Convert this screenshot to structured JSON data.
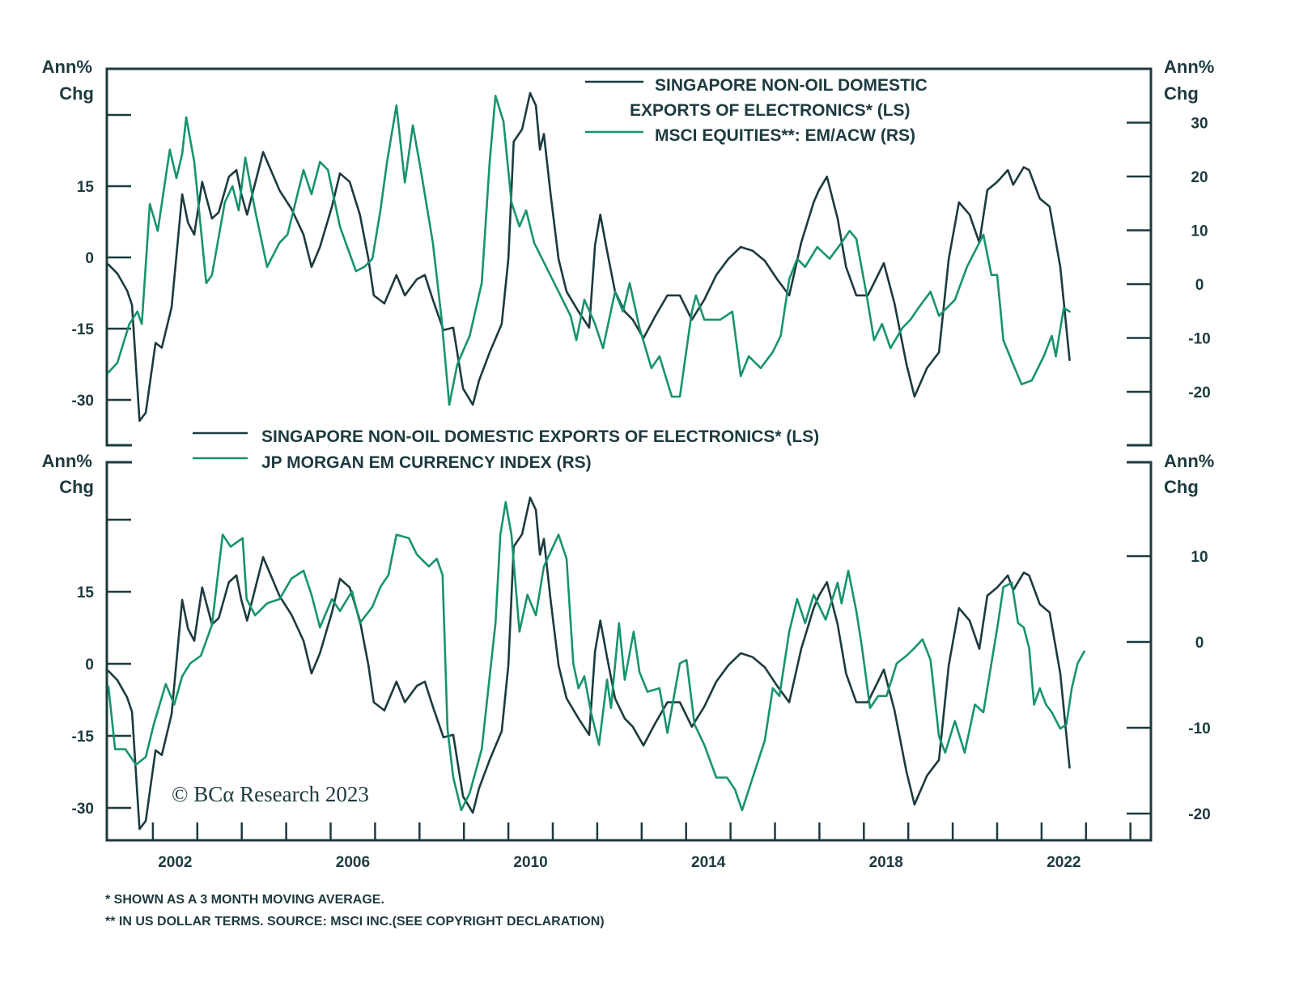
{
  "chart_data": [
    {
      "type": "line",
      "panel": "top",
      "left_axis": {
        "label_line1": "Ann%",
        "label_line2": "Chg",
        "ticks": [
          30,
          15,
          0,
          -15,
          -30
        ],
        "tick_labels": [
          "",
          "15",
          "0",
          "-15",
          "-30"
        ],
        "range": [
          -37,
          40
        ]
      },
      "right_axis": {
        "label_line1": "Ann%",
        "label_line2": "Chg",
        "ticks": [
          30,
          20,
          10,
          0,
          -10,
          -20
        ],
        "tick_labels": [
          "30",
          "20",
          "10",
          "0",
          "-10",
          "-20"
        ],
        "range": [
          -30,
          40
        ]
      },
      "legend": {
        "placement": "top-right",
        "entries": [
          {
            "line1": "SINGAPORE NON-OIL DOMESTIC",
            "line2": "EXPORTS OF ELECTRONICS* (LS)",
            "series": "electronics"
          },
          {
            "line1": "MSCI EQUITIES**: EM/ACW (RS)",
            "series": "msci"
          }
        ]
      },
      "series": [
        {
          "name": "SINGAPORE NON-OIL DOMESTIC EXPORTS OF ELECTRONICS* (LS)",
          "key": "electronics",
          "axis": "left",
          "color": "#1d3a3f",
          "ref": "electronics"
        },
        {
          "name": "MSCI EQUITIES**: EM/ACW (RS)",
          "key": "msci",
          "axis": "right",
          "color": "#17936f",
          "x": [
            2001.0,
            2001.2,
            2001.47,
            2001.65,
            2001.75,
            2001.93,
            2002.11,
            2002.38,
            2002.53,
            2002.66,
            2002.75,
            2002.93,
            2003.2,
            2003.33,
            2003.62,
            2003.79,
            2003.93,
            2004.08,
            2004.3,
            2004.57,
            2004.85,
            2005.03,
            2005.39,
            2005.57,
            2005.76,
            2005.94,
            2006.21,
            2006.57,
            2006.76,
            2006.94,
            2007.12,
            2007.27,
            2007.48,
            2007.67,
            2007.85,
            2008.03,
            2008.3,
            2008.49,
            2008.67,
            2008.85,
            2009.13,
            2009.4,
            2009.58,
            2009.71,
            2009.89,
            2010.07,
            2010.25,
            2010.4,
            2010.58,
            2010.85,
            2011.13,
            2011.4,
            2011.53,
            2011.71,
            2011.95,
            2012.13,
            2012.4,
            2012.58,
            2012.73,
            2012.95,
            2013.22,
            2013.4,
            2013.68,
            2013.86,
            2014.13,
            2014.22,
            2014.41,
            2014.77,
            2015.04,
            2015.23,
            2015.41,
            2015.68,
            2015.95,
            2016.13,
            2016.32,
            2016.5,
            2016.68,
            2016.95,
            2017.23,
            2017.5,
            2017.68,
            2017.83,
            2018.05,
            2018.23,
            2018.41,
            2018.6,
            2018.87,
            2019.05,
            2019.23,
            2019.5,
            2019.69,
            2020.05,
            2020.32,
            2020.6,
            2020.69,
            2020.87,
            2021.0,
            2021.14,
            2021.36,
            2021.55,
            2021.78,
            2022.05,
            2022.23,
            2022.32,
            2022.5,
            2022.63
          ],
          "y": [
            -16.4,
            -14.6,
            -7.4,
            -5.1,
            -7.4,
            14.9,
            9.9,
            25,
            19.7,
            24.2,
            31,
            22.7,
            0.2,
            1.7,
            15.2,
            18.2,
            13.7,
            23.5,
            13.7,
            3.2,
            7.7,
            9.2,
            21.2,
            16.7,
            22.7,
            21.2,
            10.7,
            2.4,
            3.2,
            4.7,
            13.7,
            22.7,
            33.2,
            18.9,
            29.5,
            21.2,
            7.7,
            -5.9,
            -22.4,
            -14.9,
            -9.6,
            0.2,
            22.7,
            35,
            30.2,
            15.2,
            10.7,
            13.7,
            7.7,
            3.2,
            -1.4,
            -5.9,
            -10.4,
            -2.9,
            -7.4,
            -11.9,
            -1.4,
            -5.1,
            0.2,
            -8.1,
            -15.6,
            -13.4,
            -20.9,
            -20.9,
            -5.1,
            -2.1,
            -6.6,
            -6.6,
            -5.1,
            -17.1,
            -13.4,
            -15.6,
            -12.6,
            -9.6,
            0.9,
            4.7,
            3.2,
            6.9,
            4.7,
            7.7,
            9.9,
            8.4,
            -1.4,
            -10.4,
            -7.4,
            -11.9,
            -8.1,
            -6.6,
            -4.4,
            -1.4,
            -5.9,
            -2.9,
            3.2,
            7.7,
            9.2,
            1.7,
            1.7,
            -10.4,
            -14.9,
            -18.6,
            -17.9,
            -13.4,
            -9.6,
            -13.4,
            -4.4,
            -5.1
          ]
        }
      ]
    },
    {
      "type": "line",
      "panel": "bottom",
      "left_axis": {
        "label_line1": "Ann%",
        "label_line2": "Chg",
        "ticks": [
          30,
          15,
          0,
          -15,
          -30
        ],
        "tick_labels": [
          "",
          "15",
          "0",
          "-15",
          "-30"
        ],
        "range": [
          -37,
          40
        ]
      },
      "right_axis": {
        "label_line1": "Ann%",
        "label_line2": "Chg",
        "ticks": [
          10,
          0,
          -10,
          -20
        ],
        "tick_labels": [
          "10",
          "0",
          "-10",
          "-20"
        ],
        "range": [
          -24,
          20
        ]
      },
      "legend": {
        "placement": "top-left",
        "entries": [
          {
            "line1": "SINGAPORE NON-OIL DOMESTIC EXPORTS OF ELECTRONICS* (LS)",
            "series": "electronics"
          },
          {
            "line1": "JP MORGAN EM CURRENCY INDEX (RS)",
            "series": "emfx"
          }
        ]
      },
      "series": [
        {
          "name": "SINGAPORE NON-OIL DOMESTIC EXPORTS OF ELECTRONICS* (LS)",
          "key": "electronics",
          "axis": "left",
          "color": "#1d3a3f",
          "ref": "electronics"
        },
        {
          "name": "JP MORGAN EM CURRENCY INDEX (RS)",
          "key": "emfx",
          "axis": "right",
          "color": "#17936f",
          "x": [
            2001.0,
            2001.15,
            2001.38,
            2001.62,
            2001.84,
            2002.02,
            2002.29,
            2002.48,
            2002.66,
            2002.84,
            2003.08,
            2003.33,
            2003.57,
            2003.75,
            2004.02,
            2004.11,
            2004.3,
            2004.57,
            2004.85,
            2005.12,
            2005.39,
            2005.57,
            2005.76,
            2006.03,
            2006.21,
            2006.48,
            2006.66,
            2006.94,
            2007.12,
            2007.3,
            2007.48,
            2007.76,
            2007.94,
            2008.21,
            2008.39,
            2008.52,
            2008.63,
            2008.76,
            2008.94,
            2009.13,
            2009.4,
            2009.71,
            2009.82,
            2009.94,
            2010.07,
            2010.25,
            2010.43,
            2010.62,
            2010.8,
            2011.13,
            2011.31,
            2011.46,
            2011.58,
            2011.71,
            2011.86,
            2012.04,
            2012.22,
            2012.31,
            2012.49,
            2012.62,
            2012.82,
            2012.95,
            2013.13,
            2013.4,
            2013.58,
            2013.86,
            2014.01,
            2014.19,
            2014.41,
            2014.68,
            2014.92,
            2015.1,
            2015.26,
            2015.5,
            2015.77,
            2015.95,
            2016.1,
            2016.32,
            2016.5,
            2016.68,
            2016.87,
            2017.14,
            2017.41,
            2017.5,
            2017.65,
            2017.83,
            2017.96,
            2018.14,
            2018.32,
            2018.51,
            2018.74,
            2018.96,
            2019.14,
            2019.32,
            2019.5,
            2019.69,
            2019.83,
            2020.05,
            2020.27,
            2020.5,
            2020.69,
            2020.87,
            2021.02,
            2021.14,
            2021.33,
            2021.47,
            2021.6,
            2021.72,
            2021.83,
            2021.96,
            2022.1,
            2022.23,
            2022.42,
            2022.56,
            2022.68,
            2022.81,
            2022.96
          ],
          "y": [
            -5.2,
            -12.5,
            -12.5,
            -14.3,
            -13.4,
            -9.6,
            -4.9,
            -7.3,
            -4,
            -2.5,
            -1.6,
            2,
            12.5,
            11.1,
            12.1,
            5,
            3.1,
            4.5,
            5,
            7.4,
            8.3,
            5.5,
            1.7,
            5,
            3.6,
            5.9,
            2.2,
            4.1,
            6.4,
            7.8,
            12.5,
            12.1,
            10.2,
            8.8,
            9.7,
            7.8,
            -10.1,
            -15.8,
            -19.6,
            -17.6,
            -12.5,
            2.2,
            12.5,
            16.3,
            12.5,
            1.2,
            5.5,
            3.1,
            8.8,
            12.5,
            9.7,
            -2.5,
            -5.4,
            -4,
            -8.2,
            -12,
            -4.4,
            -7.7,
            2.2,
            -4.4,
            1.2,
            -3.5,
            -5.8,
            -5.4,
            -10.6,
            -2.5,
            -2.1,
            -9.6,
            -12,
            -15.8,
            -15.8,
            -17.2,
            -19.6,
            -15.8,
            -11.5,
            -5.4,
            -6.3,
            1.2,
            5,
            2.2,
            5.5,
            2.6,
            6.9,
            4.5,
            8.3,
            3.6,
            -0.7,
            -7.7,
            -6.3,
            -6.3,
            -2.5,
            -1.6,
            -0.7,
            0.3,
            -2.1,
            -11,
            -12.9,
            -9.2,
            -12.9,
            -7.3,
            -8.2,
            -2.5,
            2.2,
            6.4,
            6.9,
            2.2,
            1.7,
            -0.7,
            -7.3,
            -5.4,
            -7.3,
            -8.2,
            -10.1,
            -9.6,
            -5.4,
            -2.5,
            -1.1
          ]
        }
      ]
    }
  ],
  "shared_series": {
    "electronics": {
      "x": [
        2001.0,
        2001.2,
        2001.42,
        2001.53,
        2001.7,
        2001.84,
        2002.06,
        2002.2,
        2002.42,
        2002.66,
        2002.79,
        2002.93,
        2003.11,
        2003.33,
        2003.48,
        2003.71,
        2003.88,
        2003.99,
        2004.12,
        2004.48,
        2004.85,
        2005.12,
        2005.39,
        2005.57,
        2005.76,
        2006.03,
        2006.21,
        2006.43,
        2006.66,
        2006.85,
        2006.97,
        2007.21,
        2007.48,
        2007.67,
        2007.94,
        2008.12,
        2008.3,
        2008.54,
        2008.76,
        2008.98,
        2009.2,
        2009.34,
        2009.58,
        2009.85,
        2010.0,
        2010.12,
        2010.31,
        2010.49,
        2010.62,
        2010.71,
        2010.8,
        2010.95,
        2011.13,
        2011.31,
        2011.58,
        2011.82,
        2011.95,
        2012.07,
        2012.22,
        2012.4,
        2012.62,
        2012.8,
        2013.04,
        2013.31,
        2013.58,
        2013.86,
        2014.13,
        2014.41,
        2014.68,
        2014.95,
        2015.23,
        2015.5,
        2015.77,
        2016.05,
        2016.32,
        2016.59,
        2016.87,
        2016.99,
        2017.17,
        2017.41,
        2017.6,
        2017.83,
        2018.09,
        2018.45,
        2018.69,
        2018.96,
        2019.14,
        2019.42,
        2019.69,
        2019.91,
        2020.14,
        2020.38,
        2020.6,
        2020.78,
        2021.0,
        2021.24,
        2021.36,
        2021.6,
        2021.72,
        2021.96,
        2022.18,
        2022.42,
        2022.63
      ],
      "y": [
        -1.5,
        -3.4,
        -7,
        -10,
        -34.4,
        -32.7,
        -18,
        -19,
        -10.5,
        13.3,
        7.3,
        4.8,
        15.9,
        8.2,
        9.5,
        17,
        18.4,
        13.3,
        9,
        22.2,
        14.1,
        10.2,
        4.8,
        -2,
        2.2,
        10.7,
        17.7,
        15.9,
        9,
        -0.3,
        -8,
        -9.7,
        -3.7,
        -8,
        -4.6,
        -3.7,
        -8.9,
        -15.3,
        -14.8,
        -27.6,
        -31,
        -25.9,
        -20,
        -14,
        -0.3,
        24.4,
        27,
        34.6,
        32,
        22.7,
        26,
        13.3,
        -0.3,
        -7.2,
        -11.4,
        -14.8,
        2.6,
        9,
        1.4,
        -7.2,
        -11.4,
        -13.1,
        -17,
        -12.3,
        -8,
        -8,
        -13.1,
        -8.9,
        -3.7,
        -0.3,
        2.2,
        1.4,
        -0.7,
        -4.6,
        -8,
        3.1,
        11.6,
        14.2,
        17,
        8.2,
        -2,
        -8,
        -8,
        -1.2,
        -9.7,
        -22.5,
        -29.3,
        -23.3,
        -20,
        -0.3,
        11.6,
        9,
        3.1,
        14.2,
        15.9,
        18.4,
        15.3,
        19,
        18.4,
        12.4,
        10.7,
        -2,
        -21.6
      ]
    }
  },
  "x_axis": {
    "range_years": [
      2001.0,
      2024.45
    ],
    "tick_every_years": 1,
    "labels": [
      "2002",
      "2006",
      "2010",
      "2014",
      "2018",
      "2022"
    ]
  },
  "watermark": "© BCα Research 2023",
  "footnotes": [
    "*  SHOWN AS A 3 MONTH MOVING AVERAGE.",
    "** IN US DOLLAR TERMS. SOURCE: MSCI INC.(SEE COPYRIGHT DECLARATION)"
  ],
  "colors": {
    "dark": "#1d3a3f",
    "green": "#17936f"
  }
}
